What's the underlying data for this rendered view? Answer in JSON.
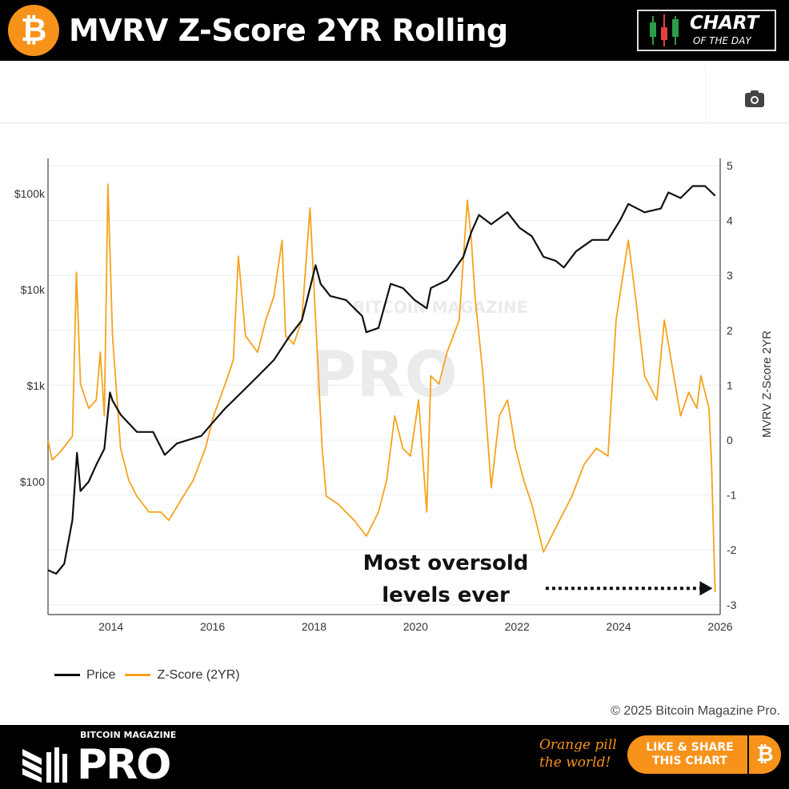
{
  "header": {
    "title": "MVRV Z-Score 2YR Rolling",
    "badge_line1": "CHART",
    "badge_line2": "OF THE DAY",
    "logo_glyph": "₿"
  },
  "toolbar": {
    "camera_icon": "camera-icon"
  },
  "legend": [
    {
      "label": "Price",
      "color": "#111111"
    },
    {
      "label": "Z-Score (2YR)",
      "color": "#f7a21b"
    }
  ],
  "copyright": "© 2025 Bitcoin Magazine Pro.",
  "footer": {
    "brand_top": "BITCOIN MAGAZINE",
    "brand_main": "PRO",
    "slogan_1": "Orange pill",
    "slogan_2": "the world!",
    "share_1": "LIKE & SHARE",
    "share_2": "THIS CHART",
    "share_glyph": "₿"
  },
  "chart_data": {
    "type": "line",
    "watermark": "BITCOIN MAGAZINE PRO",
    "xlim": [
      2012.76,
      2026.0
    ],
    "x_ticks": [
      {
        "v": 2014,
        "label": "2014"
      },
      {
        "v": 2016,
        "label": "2016"
      },
      {
        "v": 2018,
        "label": "2018"
      },
      {
        "v": 2020,
        "label": "2020"
      },
      {
        "v": 2022,
        "label": "2022"
      },
      {
        "v": 2024,
        "label": "2024"
      },
      {
        "v": 2026,
        "label": "2026"
      }
    ],
    "y_left": {
      "scale": "log",
      "ylim": [
        6,
        180000
      ],
      "ticks": [
        {
          "v": 100,
          "label": "$100"
        },
        {
          "v": 1000,
          "label": "$1k"
        },
        {
          "v": 10000,
          "label": "$10k"
        },
        {
          "v": 100000,
          "label": "$100k"
        }
      ]
    },
    "y_right": {
      "label": "MVRV Z-Score 2YR",
      "ylim": [
        -3.3,
        5.15
      ],
      "ticks": [
        5,
        4,
        3,
        2,
        1,
        0,
        -1,
        -2,
        -3
      ]
    },
    "grid": true,
    "legend_position": "bottom-left",
    "annotation": {
      "line1": "Most oversold",
      "line2": "levels ever",
      "arrow_from": 2022.5,
      "arrow_to": 2025.85,
      "arrow_level": -2.7
    },
    "series": [
      {
        "name": "Price",
        "axis": "left",
        "color": "#111111",
        "x": [
          2012.76,
          2012.92,
          2013.08,
          2013.24,
          2013.33,
          2013.4,
          2013.56,
          2013.71,
          2013.87,
          2013.98,
          2014.03,
          2014.19,
          2014.51,
          2014.83,
          2015.06,
          2015.3,
          2015.78,
          2015.98,
          2016.25,
          2016.57,
          2016.89,
          2017.21,
          2017.52,
          2017.76,
          2017.92,
          2018.03,
          2018.13,
          2018.32,
          2018.63,
          2018.95,
          2019.03,
          2019.27,
          2019.51,
          2019.75,
          2019.98,
          2020.22,
          2020.3,
          2020.62,
          2020.94,
          2021.1,
          2021.25,
          2021.49,
          2021.81,
          2022.05,
          2022.29,
          2022.52,
          2022.76,
          2022.92,
          2023.16,
          2023.48,
          2023.79,
          2024.03,
          2024.19,
          2024.51,
          2024.83,
          2024.98,
          2025.22,
          2025.46,
          2025.7,
          2025.9
        ],
        "values": [
          12,
          11,
          14,
          40,
          200,
          80,
          100,
          150,
          220,
          850,
          700,
          500,
          330,
          330,
          190,
          250,
          300,
          400,
          580,
          850,
          1250,
          1850,
          3300,
          4800,
          10400,
          18000,
          11500,
          8600,
          7800,
          5300,
          3600,
          4000,
          11500,
          10400,
          7800,
          6400,
          10400,
          12600,
          22000,
          40000,
          60000,
          48000,
          64000,
          44000,
          36000,
          22000,
          20000,
          17000,
          25000,
          33000,
          33000,
          53000,
          78000,
          64000,
          70000,
          103000,
          90000,
          120000,
          120000,
          95000
        ]
      },
      {
        "name": "Z-Score (2YR)",
        "axis": "right",
        "color": "#f7a21b",
        "x": [
          2012.76,
          2012.84,
          2013.0,
          2013.24,
          2013.32,
          2013.4,
          2013.56,
          2013.71,
          2013.79,
          2013.87,
          2013.94,
          2014.03,
          2014.19,
          2014.35,
          2014.51,
          2014.75,
          2014.98,
          2015.14,
          2015.38,
          2015.62,
          2015.86,
          2016.02,
          2016.25,
          2016.41,
          2016.51,
          2016.65,
          2016.89,
          2017.05,
          2017.21,
          2017.37,
          2017.44,
          2017.6,
          2017.76,
          2017.92,
          2018.08,
          2018.16,
          2018.24,
          2018.48,
          2018.79,
          2019.03,
          2019.27,
          2019.43,
          2019.59,
          2019.75,
          2019.9,
          2020.06,
          2020.22,
          2020.3,
          2020.46,
          2020.62,
          2020.86,
          2021.02,
          2021.1,
          2021.17,
          2021.33,
          2021.49,
          2021.65,
          2021.81,
          2021.97,
          2022.13,
          2022.29,
          2022.52,
          2022.76,
          2023.08,
          2023.32,
          2023.56,
          2023.79,
          2023.95,
          2024.19,
          2024.35,
          2024.51,
          2024.75,
          2024.9,
          2025.06,
          2025.22,
          2025.38,
          2025.54,
          2025.62,
          2025.78,
          2025.83,
          2025.9
        ],
        "values": [
          0,
          -0.36,
          -0.22,
          0.07,
          3.06,
          1.02,
          0.58,
          0.73,
          1.6,
          0.44,
          4.66,
          1.9,
          -0.15,
          -0.73,
          -1.02,
          -1.31,
          -1.31,
          -1.46,
          -1.09,
          -0.73,
          -0.15,
          0.44,
          1.02,
          1.46,
          3.35,
          1.9,
          1.6,
          2.19,
          2.62,
          3.64,
          1.9,
          1.75,
          2.19,
          4.23,
          1.31,
          -0.15,
          -1.02,
          -1.17,
          -1.46,
          -1.75,
          -1.31,
          -0.73,
          0.44,
          -0.15,
          -0.29,
          0.73,
          -1.31,
          1.17,
          1.02,
          1.6,
          2.19,
          4.37,
          3.64,
          2.62,
          1.17,
          -0.87,
          0.44,
          0.73,
          -0.15,
          -0.73,
          -1.17,
          -2.04,
          -1.6,
          -1.02,
          -0.44,
          -0.15,
          -0.29,
          2.19,
          3.64,
          2.48,
          1.17,
          0.73,
          2.19,
          1.31,
          0.44,
          0.87,
          0.58,
          1.17,
          0.58,
          -0.44,
          -2.77
        ]
      }
    ]
  }
}
